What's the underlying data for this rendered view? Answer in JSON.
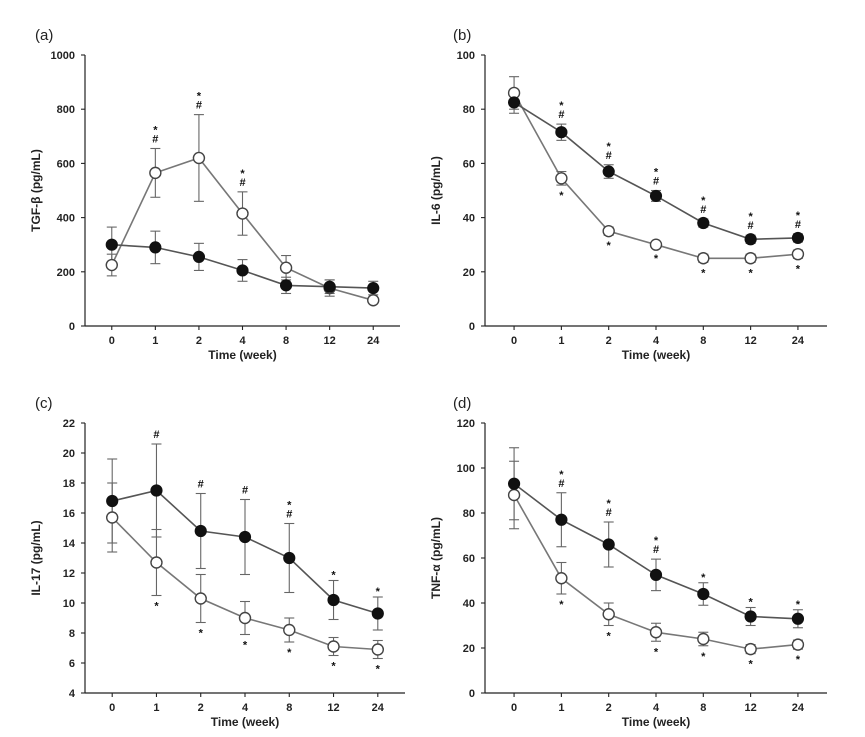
{
  "chart_data": [
    {
      "id": "a",
      "type": "line",
      "panel_label": "(a)",
      "ylabel": "TGF-β (pg/mL)",
      "xlabel": "Time (week)",
      "categories": [
        "0",
        "1",
        "2",
        "4",
        "8",
        "12",
        "24"
      ],
      "ylim": [
        0,
        1000
      ],
      "yticks": [
        "0",
        "200",
        "400",
        "600",
        "800",
        "1000"
      ],
      "series": [
        {
          "name": "open",
          "marker": "open-circle",
          "values": [
            225,
            565,
            620,
            415,
            215,
            140,
            95
          ],
          "err": [
            40,
            90,
            160,
            80,
            45,
            30,
            10
          ],
          "sig_above": [
            "",
            "*#",
            "*#",
            "*#",
            "",
            "",
            ""
          ],
          "sig_below": [
            "",
            "",
            "",
            "",
            "",
            "",
            ""
          ]
        },
        {
          "name": "filled",
          "marker": "filled-circle",
          "values": [
            300,
            290,
            255,
            205,
            150,
            145,
            140
          ],
          "err": [
            65,
            60,
            50,
            40,
            30,
            25,
            25
          ],
          "sig_above": [
            "",
            "",
            "",
            "",
            "",
            "",
            ""
          ],
          "sig_below": [
            "",
            "",
            "",
            "",
            "",
            "",
            ""
          ]
        }
      ]
    },
    {
      "id": "b",
      "type": "line",
      "panel_label": "(b)",
      "ylabel": "IL-6 (pg/mL)",
      "xlabel": "Time (week)",
      "categories": [
        "0",
        "1",
        "2",
        "4",
        "8",
        "12",
        "24"
      ],
      "ylim": [
        0,
        100
      ],
      "yticks": [
        "0",
        "20",
        "40",
        "60",
        "80",
        "100"
      ],
      "series": [
        {
          "name": "open",
          "marker": "open-circle",
          "values": [
            86,
            54.5,
            35,
            30,
            25,
            25,
            26.5
          ],
          "err": [
            6,
            2.5,
            1.5,
            1.2,
            1.5,
            1.5,
            1.5
          ],
          "sig_above": [
            "",
            "",
            "",
            "",
            "",
            "",
            ""
          ],
          "sig_below": [
            "",
            "*",
            "*",
            "*",
            "*",
            "*",
            "*"
          ]
        },
        {
          "name": "filled",
          "marker": "filled-circle",
          "values": [
            82.5,
            71.5,
            57,
            48,
            38,
            32,
            32.5
          ],
          "err": [
            4,
            3,
            2.5,
            2,
            1.5,
            1.5,
            1.5
          ],
          "sig_above": [
            "",
            "*#",
            "*#",
            "*#",
            "*#",
            "*#",
            "*#"
          ],
          "sig_below": [
            "",
            "",
            "",
            "",
            "",
            "",
            ""
          ]
        }
      ]
    },
    {
      "id": "c",
      "type": "line",
      "panel_label": "(c)",
      "ylabel": "IL-17 (pg/mL)",
      "xlabel": "Time (week)",
      "categories": [
        "0",
        "1",
        "2",
        "4",
        "8",
        "12",
        "24"
      ],
      "ylim": [
        4,
        22
      ],
      "yticks": [
        "4",
        "6",
        "8",
        "10",
        "12",
        "14",
        "16",
        "18",
        "20",
        "22"
      ],
      "series": [
        {
          "name": "open",
          "marker": "open-circle",
          "values": [
            15.7,
            12.7,
            10.3,
            9.0,
            8.2,
            7.1,
            6.9
          ],
          "err": [
            2.3,
            2.2,
            1.6,
            1.1,
            0.8,
            0.6,
            0.6
          ],
          "sig_above": [
            "",
            "",
            "",
            "",
            "",
            "",
            ""
          ],
          "sig_below": [
            "",
            "*",
            "*",
            "*",
            "*",
            "*",
            "*"
          ]
        },
        {
          "name": "filled",
          "marker": "filled-circle",
          "values": [
            16.8,
            17.5,
            14.8,
            14.4,
            13.0,
            10.2,
            9.3
          ],
          "err": [
            2.8,
            3.1,
            2.5,
            2.5,
            2.3,
            1.3,
            1.1
          ],
          "sig_above": [
            "",
            "#",
            "#",
            "#",
            "*#",
            "*",
            "*"
          ],
          "sig_below": [
            "",
            "",
            "",
            "",
            "",
            "",
            ""
          ]
        }
      ]
    },
    {
      "id": "d",
      "type": "line",
      "panel_label": "(d)",
      "ylabel": "TNF-α (pg/mL)",
      "xlabel": "Time (week)",
      "categories": [
        "0",
        "1",
        "2",
        "4",
        "8",
        "12",
        "24"
      ],
      "ylim": [
        0,
        120
      ],
      "yticks": [
        "0",
        "20",
        "40",
        "60",
        "80",
        "100",
        "120"
      ],
      "series": [
        {
          "name": "open",
          "marker": "open-circle",
          "values": [
            88,
            51,
            35,
            27,
            24,
            19.5,
            21.5
          ],
          "err": [
            15,
            7,
            5,
            4,
            3,
            2,
            2
          ],
          "sig_above": [
            "",
            "",
            "",
            "",
            "",
            "",
            ""
          ],
          "sig_below": [
            "",
            "*",
            "*",
            "*",
            "*",
            "*",
            "*"
          ]
        },
        {
          "name": "filled",
          "marker": "filled-circle",
          "values": [
            93,
            77,
            66,
            52.5,
            44,
            34,
            33
          ],
          "err": [
            16,
            12,
            10,
            7,
            5,
            4,
            4
          ],
          "sig_above": [
            "",
            "*#",
            "*#",
            "*#",
            "*",
            "*",
            "*"
          ],
          "sig_below": [
            "",
            "",
            "",
            "",
            "",
            "",
            ""
          ]
        }
      ]
    }
  ]
}
